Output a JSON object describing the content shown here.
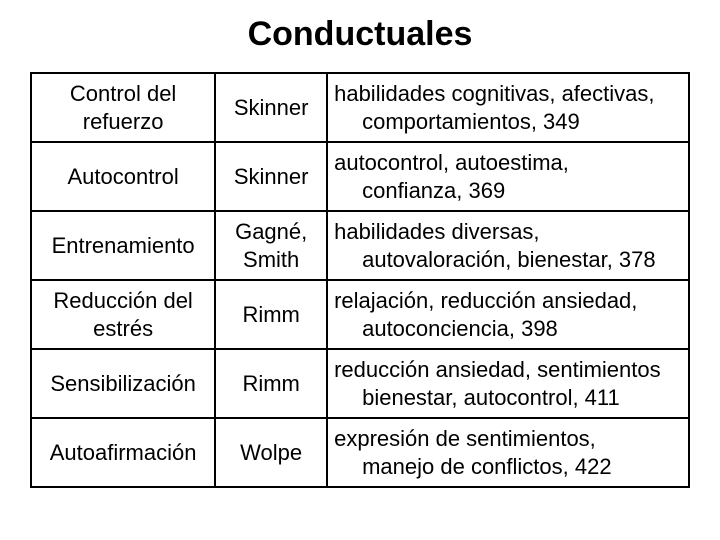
{
  "title": "Conductuales",
  "table": {
    "rows": [
      {
        "topic_line1": "Control del",
        "topic_line2": "refuerzo",
        "author": "Skinner",
        "desc_line1": "habilidades cognitivas, afectivas,",
        "desc_line2": "comportamientos, 349"
      },
      {
        "topic_line1": "Autocontrol",
        "topic_line2": "",
        "author": "Skinner",
        "desc_line1": "autocontrol, autoestima,",
        "desc_line2": "confianza, 369"
      },
      {
        "topic_line1": "Entrenamiento",
        "topic_line2": "",
        "author_line1": "Gagné,",
        "author_line2": "Smith",
        "desc_line1": "habilidades diversas,",
        "desc_line2": "autovaloración, bienestar, 378"
      },
      {
        "topic_line1": "Reducción del",
        "topic_line2": "estrés",
        "author": "Rimm",
        "desc_line1": "relajación, reducción ansiedad,",
        "desc_line2": "autoconciencia, 398"
      },
      {
        "topic_line1": "Sensibilización",
        "topic_line2": "",
        "author": "Rimm",
        "desc_line1": "reducción ansiedad, sentimientos",
        "desc_line2": "bienestar, autocontrol, 411"
      },
      {
        "topic_line1": "Autoafirmación",
        "topic_line2": "",
        "author": "Wolpe",
        "desc_line1": "expresión de sentimientos,",
        "desc_line2": "manejo de conflictos, 422"
      }
    ]
  },
  "style": {
    "background_color": "#ffffff",
    "text_color": "#000000",
    "border_color": "#000000",
    "title_fontsize": 34,
    "cell_fontsize": 22,
    "font_family": "Arial"
  }
}
